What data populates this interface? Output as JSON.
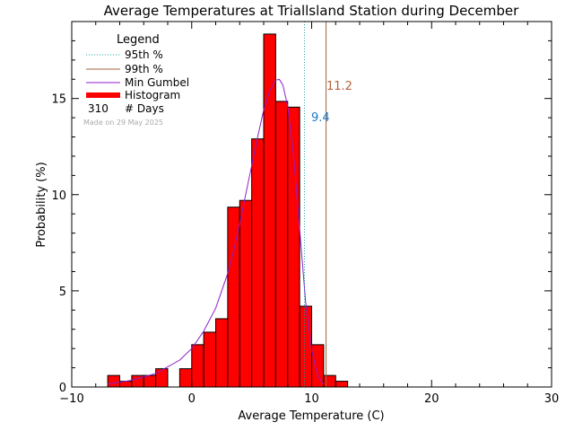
{
  "chart_data": {
    "type": "bar",
    "title": "Average Temperatures at Triallsland Station during December",
    "xlabel": "Average Temperature (C)",
    "ylabel": "Probability (%)",
    "xlim": [
      -10,
      30
    ],
    "ylim": [
      0,
      19
    ],
    "xticks": [
      -10,
      0,
      10,
      20,
      30
    ],
    "yticks": [
      0,
      5,
      10,
      15
    ],
    "legend_placement": "top-left",
    "legend": {
      "title": "Legend",
      "items": [
        {
          "key": "p95",
          "label": "95th %"
        },
        {
          "key": "p99",
          "label": "99th %"
        },
        {
          "key": "gumbel",
          "label": "Min Gumbel"
        },
        {
          "key": "hist",
          "label": "Histogram"
        }
      ],
      "days_count": "310",
      "days_label": "# Days"
    },
    "made_on": "Made on 29 May 2025",
    "bin_width": 1,
    "bins": [
      {
        "left": -7,
        "value": 0.6
      },
      {
        "left": -6,
        "value": 0.3
      },
      {
        "left": -5,
        "value": 0.6
      },
      {
        "left": -4,
        "value": 0.6
      },
      {
        "left": -3,
        "value": 0.95
      },
      {
        "left": -2,
        "value": 0.0
      },
      {
        "left": -1,
        "value": 0.95
      },
      {
        "left": 0,
        "value": 2.2
      },
      {
        "left": 1,
        "value": 2.85
      },
      {
        "left": 2,
        "value": 3.55
      },
      {
        "left": 3,
        "value": 9.35
      },
      {
        "left": 4,
        "value": 9.7
      },
      {
        "left": 5,
        "value": 12.9
      },
      {
        "left": 6,
        "value": 18.35
      },
      {
        "left": 7,
        "value": 14.85
      },
      {
        "left": 8,
        "value": 14.55
      },
      {
        "left": 9,
        "value": 4.2
      },
      {
        "left": 10,
        "value": 2.2
      },
      {
        "left": 11,
        "value": 0.6
      },
      {
        "left": 12,
        "value": 0.3
      }
    ],
    "gumbel_curve": {
      "x": [
        -7,
        -5,
        -3,
        -1,
        0,
        1,
        2,
        3,
        3.5,
        4,
        4.5,
        5,
        5.5,
        6,
        6.5,
        7,
        7.3,
        7.6,
        8,
        8.5,
        9,
        9.5,
        10,
        10.5,
        11
      ],
      "y": [
        0.15,
        0.35,
        0.7,
        1.4,
        2.0,
        2.9,
        4.1,
        5.9,
        7.1,
        8.5,
        10.0,
        11.5,
        13.0,
        14.4,
        15.4,
        15.95,
        16.0,
        15.7,
        14.6,
        12.0,
        8.2,
        4.4,
        1.9,
        0.6,
        0.15
      ]
    },
    "percentile_95": {
      "value": 9.4,
      "label": "9.4",
      "color": "#1e78c8"
    },
    "percentile_99": {
      "value": 11.2,
      "label": "11.2",
      "color": "#b4643c"
    },
    "colors": {
      "histogram": "#ff0000",
      "gumbel": "#8c1ec8",
      "p95_line": "#14a0a0",
      "p99_line": "#a0643c",
      "axes": "#000000",
      "made_on": "#aaaaaa"
    }
  }
}
